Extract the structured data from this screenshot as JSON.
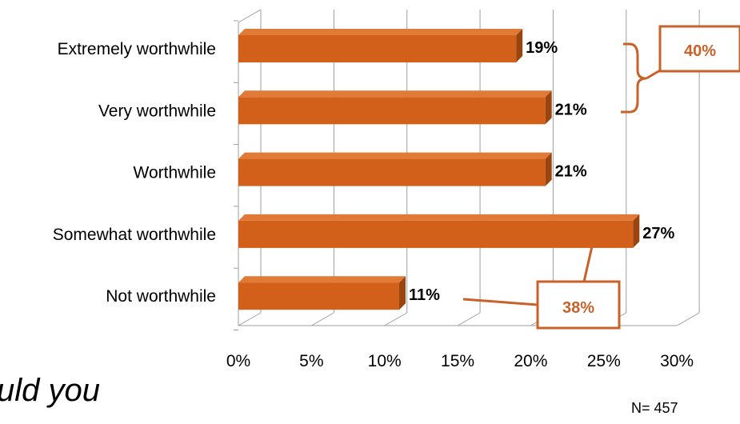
{
  "chart_data": {
    "type": "bar",
    "orientation": "horizontal",
    "style": "3d",
    "categories": [
      "Extremely worthwhile",
      "Very worthwhile",
      "Worthwhile",
      "Somewhat worthwhile",
      "Not worthwhile"
    ],
    "values": [
      19,
      21,
      21,
      27,
      11
    ],
    "data_labels": [
      "19%",
      "21%",
      "21%",
      "27%",
      "11%"
    ],
    "x_ticks": [
      "0%",
      "5%",
      "10%",
      "15%",
      "20%",
      "25%",
      "30%"
    ],
    "xlim": [
      0,
      30
    ],
    "grid": true,
    "title": "",
    "xlabel": "",
    "ylabel": "",
    "colors": {
      "bar": "#D2601A",
      "bar_top": "#E07A36",
      "bar_side": "#9A4410",
      "accent": "#C8612A",
      "grid": "#9E9E9E"
    },
    "annotations": [
      {
        "text": "40%",
        "groups": [
          "Extremely worthwhile",
          "Very worthwhile"
        ]
      },
      {
        "text": "38%",
        "groups": [
          "Somewhat worthwhile",
          "Not worthwhile"
        ]
      }
    ]
  },
  "caption_fragment": "uld you",
  "sample_size": "N= 457"
}
